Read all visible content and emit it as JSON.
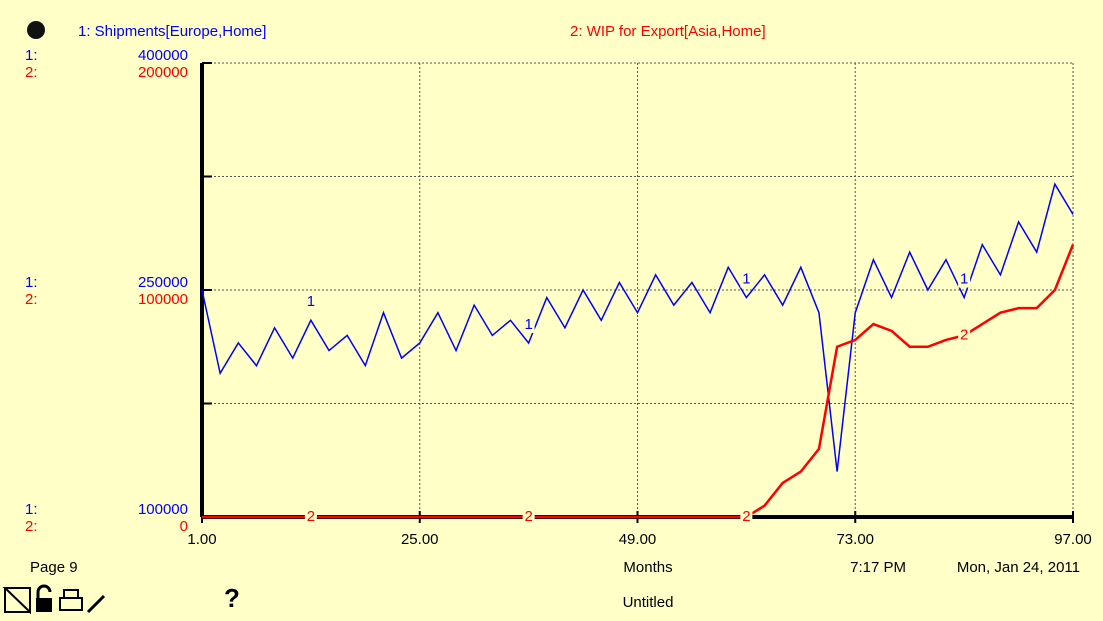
{
  "chart_data": {
    "type": "line",
    "x_label": "Months",
    "x": [
      1,
      3,
      5,
      7,
      9,
      11,
      13,
      15,
      17,
      19,
      21,
      23,
      25,
      27,
      29,
      31,
      33,
      35,
      37,
      39,
      41,
      43,
      45,
      47,
      49,
      51,
      53,
      55,
      57,
      59,
      61,
      63,
      65,
      67,
      69,
      71,
      73,
      75,
      77,
      79,
      81,
      83,
      85,
      87,
      89,
      91,
      93,
      95,
      97
    ],
    "xlim": [
      1,
      97
    ],
    "xticks": [
      {
        "value": 1,
        "label": "1.00"
      },
      {
        "value": 25,
        "label": "25.00"
      },
      {
        "value": 49,
        "label": "49.00"
      },
      {
        "value": 73,
        "label": "73.00"
      },
      {
        "value": 97,
        "label": "97.00"
      }
    ],
    "ylim": [
      100000,
      400000
    ],
    "yticks": [
      100000,
      250000,
      400000
    ],
    "minor_yticks": [
      175000,
      325000
    ],
    "y2lim": [
      0,
      200000
    ],
    "y2ticks": [
      0,
      100000,
      200000
    ],
    "grid": true,
    "series": [
      {
        "name": "1: Shipments[Europe,Home]",
        "axis_label": "1:",
        "marker": "1",
        "color": "#0000ff",
        "axis": "y",
        "values": [
          250000,
          195000,
          215000,
          200000,
          225000,
          205000,
          230000,
          210000,
          220000,
          200000,
          235000,
          205000,
          215000,
          235000,
          210000,
          240000,
          220000,
          230000,
          215000,
          245000,
          225000,
          250000,
          230000,
          255000,
          235000,
          260000,
          240000,
          255000,
          235000,
          265000,
          245000,
          260000,
          240000,
          265000,
          235000,
          130000,
          235000,
          270000,
          245000,
          275000,
          250000,
          270000,
          245000,
          280000,
          260000,
          295000,
          275000,
          320000,
          300000
        ]
      },
      {
        "name": "2: WIP for Export[Asia,Home]",
        "axis_label": "2:",
        "marker": "2",
        "color": "#ff0000",
        "axis": "y2",
        "values": [
          0,
          0,
          0,
          0,
          0,
          0,
          0,
          0,
          0,
          0,
          0,
          0,
          0,
          0,
          0,
          0,
          0,
          0,
          0,
          0,
          0,
          0,
          0,
          0,
          0,
          0,
          0,
          0,
          0,
          0,
          0,
          5000,
          15000,
          20000,
          30000,
          75000,
          78000,
          85000,
          82000,
          75000,
          75000,
          78000,
          80000,
          85000,
          90000,
          92000,
          92000,
          100000,
          120000
        ]
      }
    ]
  },
  "footer": {
    "page": "Page 9",
    "time": "7:17 PM",
    "date": "Mon, Jan 24, 2011",
    "document": "Untitled",
    "help": "?"
  }
}
